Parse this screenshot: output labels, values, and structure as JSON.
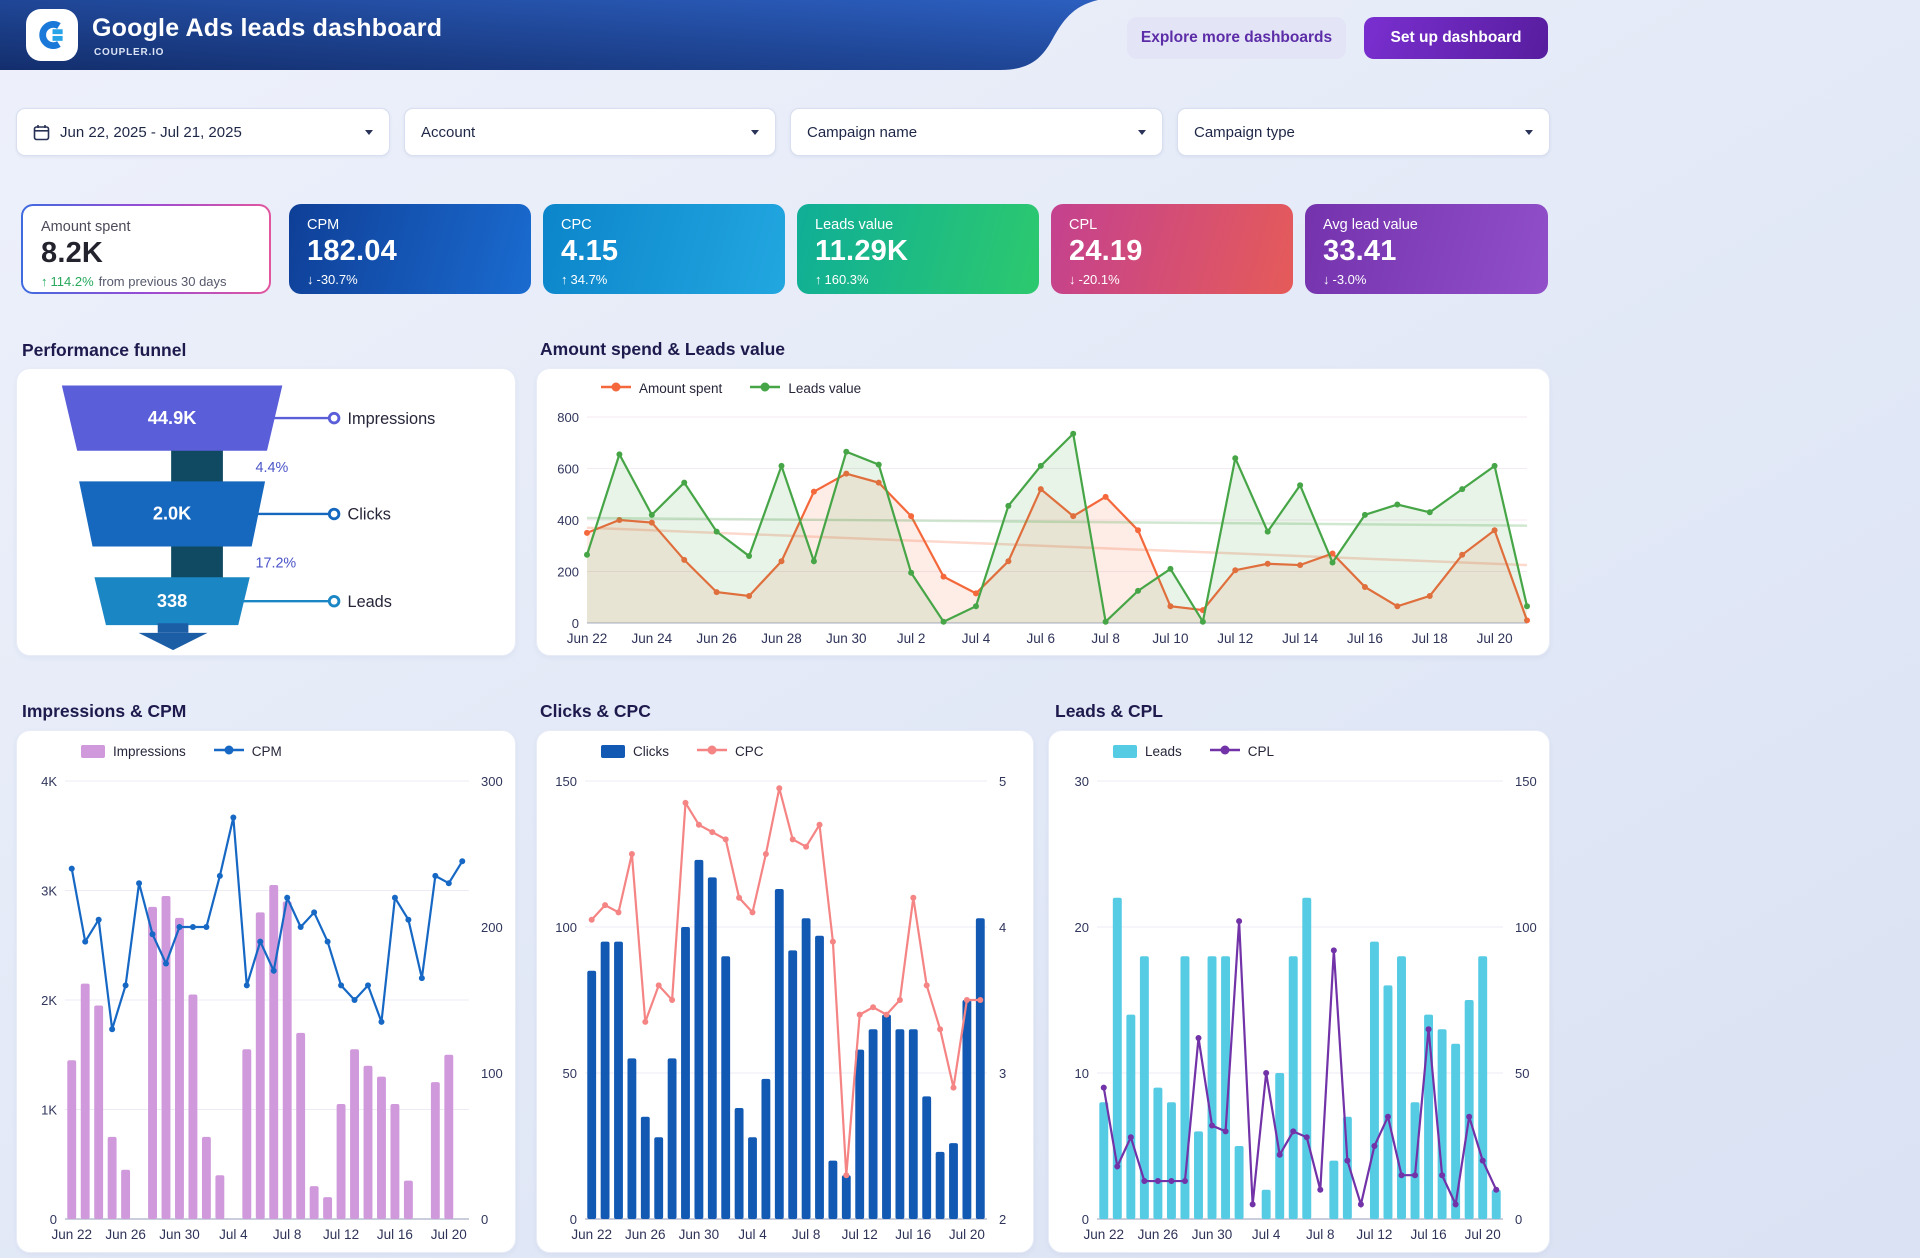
{
  "header": {
    "title": "Google Ads leads dashboard",
    "subtitle": "COUPLER.IO",
    "explore_button": "Explore more dashboards",
    "setup_button": "Set up dashboard"
  },
  "filters": {
    "date_range": "Jun 22, 2025 - Jul 21, 2025",
    "account": "Account",
    "campaign_name": "Campaign name",
    "campaign_type": "Campaign type"
  },
  "kpis": [
    {
      "label": "Amount spent",
      "value": "8.2K",
      "arrow": "↑",
      "delta": "114.2%",
      "delta_suffix": "from previous 30 days",
      "direction": "up"
    },
    {
      "label": "CPM",
      "value": "182.04",
      "arrow": "↓",
      "delta": "-30.7%",
      "direction": "down",
      "gradient": [
        "#0f3f97",
        "#1a6bd0"
      ]
    },
    {
      "label": "CPC",
      "value": "4.15",
      "arrow": "↑",
      "delta": "34.7%",
      "direction": "up",
      "gradient": [
        "#0c85ca",
        "#22a7e0"
      ]
    },
    {
      "label": "Leads value",
      "value": "11.29K",
      "arrow": "↑",
      "delta": "160.3%",
      "direction": "up",
      "gradient": [
        "#0fae97",
        "#2dc96e"
      ]
    },
    {
      "label": "CPL",
      "value": "24.19",
      "arrow": "↓",
      "delta": "-20.1%",
      "direction": "down",
      "gradient": [
        "#c4418f",
        "#e55b59"
      ]
    },
    {
      "label": "Avg lead value",
      "value": "33.41",
      "arrow": "↓",
      "delta": "-3.0%",
      "direction": "down",
      "gradient": [
        "#7433ad",
        "#9150c9"
      ]
    }
  ],
  "chart_data": [
    {
      "id": "funnel",
      "type": "funnel",
      "title": "Performance funnel",
      "stages": [
        {
          "label": "Impressions",
          "value": "44.9K",
          "color": "#5a5ed8"
        },
        {
          "label": "Clicks",
          "value": "2.0K",
          "color": "#1668bf"
        },
        {
          "label": "Leads",
          "value": "338",
          "color": "#1b86c4"
        }
      ],
      "conversions": [
        "4.4%",
        "17.2%"
      ],
      "neck_color": "#0f4a62",
      "arrow_color": "#1c5ea6"
    },
    {
      "id": "spend-leads",
      "type": "line",
      "title": "Amount spend & Leads value",
      "legend_position": "top-left",
      "grid": true,
      "x": [
        "Jun 22",
        "Jun 23",
        "Jun 24",
        "Jun 25",
        "Jun 26",
        "Jun 27",
        "Jun 28",
        "Jun 29",
        "Jun 30",
        "Jul 1",
        "Jul 2",
        "Jul 3",
        "Jul 4",
        "Jul 5",
        "Jul 6",
        "Jul 7",
        "Jul 8",
        "Jul 9",
        "Jul 10",
        "Jul 11",
        "Jul 12",
        "Jul 13",
        "Jul 14",
        "Jul 15",
        "Jul 16",
        "Jul 17",
        "Jul 18",
        "Jul 19",
        "Jul 20",
        "Jul 21"
      ],
      "tick_every": 2,
      "ylim": [
        0,
        800
      ],
      "yticks": [
        0,
        200,
        400,
        600,
        800
      ],
      "series": [
        {
          "name": "Amount spent",
          "color": "#f4683b",
          "values": [
            350,
            400,
            390,
            245,
            120,
            105,
            240,
            510,
            580,
            545,
            415,
            180,
            115,
            240,
            520,
            415,
            490,
            360,
            65,
            50,
            205,
            230,
            225,
            270,
            140,
            65,
            105,
            265,
            360,
            10
          ],
          "trend": [
            370,
            225
          ]
        },
        {
          "name": "Leads value",
          "color": "#46a546",
          "values": [
            265,
            655,
            420,
            545,
            355,
            260,
            610,
            240,
            665,
            615,
            195,
            5,
            65,
            455,
            610,
            735,
            5,
            125,
            210,
            5,
            640,
            355,
            535,
            235,
            420,
            460,
            430,
            520,
            610,
            65
          ],
          "trend": [
            408,
            378
          ]
        }
      ]
    },
    {
      "id": "impressions-cpm",
      "type": "combo",
      "title": "Impressions & CPM",
      "legend_position": "top-left",
      "grid": true,
      "x": [
        "Jun 22",
        "Jun 23",
        "Jun 24",
        "Jun 25",
        "Jun 26",
        "Jun 27",
        "Jun 28",
        "Jun 29",
        "Jun 30",
        "Jul 1",
        "Jul 2",
        "Jul 3",
        "Jul 4",
        "Jul 5",
        "Jul 6",
        "Jul 7",
        "Jul 8",
        "Jul 9",
        "Jul 10",
        "Jul 11",
        "Jul 12",
        "Jul 13",
        "Jul 14",
        "Jul 15",
        "Jul 16",
        "Jul 17",
        "Jul 18",
        "Jul 19",
        "Jul 20",
        "Jul 21"
      ],
      "tick_every": 4,
      "bar": {
        "name": "Impressions",
        "color": "#cf99db",
        "ylim": [
          0,
          4000
        ],
        "yticks": [
          0,
          1000,
          2000,
          3000,
          4000
        ],
        "ytick_labels": [
          "0",
          "1K",
          "2K",
          "3K",
          "4K"
        ],
        "values": [
          1450,
          2150,
          1950,
          750,
          450,
          0,
          2850,
          2950,
          2750,
          2050,
          750,
          400,
          0,
          1550,
          2800,
          3050,
          2900,
          1700,
          300,
          200,
          1050,
          1550,
          1400,
          1300,
          1050,
          350,
          0,
          1250,
          1500,
          0
        ]
      },
      "line": {
        "name": "CPM",
        "color": "#1668c4",
        "ylim": [
          0,
          300
        ],
        "yticks": [
          0,
          100,
          200,
          300
        ],
        "values": [
          240,
          190,
          205,
          130,
          160,
          230,
          195,
          175,
          200,
          200,
          200,
          235,
          275,
          160,
          190,
          170,
          220,
          200,
          210,
          190,
          160,
          150,
          160,
          135,
          220,
          205,
          165,
          235,
          230,
          245
        ]
      }
    },
    {
      "id": "clicks-cpc",
      "type": "combo",
      "title": "Clicks & CPC",
      "legend_position": "top-left",
      "grid": true,
      "x": [
        "Jun 22",
        "Jun 23",
        "Jun 24",
        "Jun 25",
        "Jun 26",
        "Jun 27",
        "Jun 28",
        "Jun 29",
        "Jun 30",
        "Jul 1",
        "Jul 2",
        "Jul 3",
        "Jul 4",
        "Jul 5",
        "Jul 6",
        "Jul 7",
        "Jul 8",
        "Jul 9",
        "Jul 10",
        "Jul 11",
        "Jul 12",
        "Jul 13",
        "Jul 14",
        "Jul 15",
        "Jul 16",
        "Jul 17",
        "Jul 18",
        "Jul 19",
        "Jul 20",
        "Jul 21"
      ],
      "tick_every": 4,
      "bar": {
        "name": "Clicks",
        "color": "#1159b3",
        "ylim": [
          0,
          150
        ],
        "yticks": [
          0,
          50,
          100,
          150
        ],
        "ytick_labels": [
          "0",
          "50",
          "100",
          "150"
        ],
        "values": [
          85,
          95,
          95,
          55,
          35,
          28,
          55,
          100,
          123,
          117,
          90,
          38,
          28,
          48,
          113,
          92,
          103,
          97,
          20,
          15,
          58,
          65,
          70,
          65,
          65,
          42,
          23,
          26,
          75,
          103
        ]
      },
      "line": {
        "name": "CPC",
        "color": "#f58484",
        "ylim": [
          2,
          5
        ],
        "yticks": [
          2,
          3,
          4,
          5
        ],
        "values": [
          4.05,
          4.15,
          4.1,
          4.5,
          3.35,
          3.6,
          3.5,
          4.85,
          4.7,
          4.65,
          4.6,
          4.2,
          4.1,
          4.5,
          4.95,
          4.6,
          4.55,
          4.7,
          3.9,
          2.3,
          3.4,
          3.45,
          3.4,
          3.5,
          4.2,
          3.6,
          3.3,
          2.9,
          3.5,
          3.5
        ]
      }
    },
    {
      "id": "leads-cpl",
      "type": "combo",
      "title": "Leads & CPL",
      "legend_position": "top-left",
      "grid": true,
      "x": [
        "Jun 22",
        "Jun 23",
        "Jun 24",
        "Jun 25",
        "Jun 26",
        "Jun 27",
        "Jun 28",
        "Jun 29",
        "Jun 30",
        "Jul 1",
        "Jul 2",
        "Jul 3",
        "Jul 4",
        "Jul 5",
        "Jul 6",
        "Jul 7",
        "Jul 8",
        "Jul 9",
        "Jul 10",
        "Jul 11",
        "Jul 12",
        "Jul 13",
        "Jul 14",
        "Jul 15",
        "Jul 16",
        "Jul 17",
        "Jul 18",
        "Jul 19",
        "Jul 20",
        "Jul 21"
      ],
      "tick_every": 4,
      "bar": {
        "name": "Leads",
        "color": "#55cbe4",
        "ylim": [
          0,
          30
        ],
        "yticks": [
          0,
          10,
          20,
          30
        ],
        "ytick_labels": [
          "0",
          "10",
          "20",
          "30"
        ],
        "values": [
          8,
          22,
          14,
          18,
          9,
          8,
          18,
          6,
          18,
          18,
          5,
          0,
          2,
          10,
          18,
          22,
          0,
          4,
          7,
          0,
          19,
          16,
          18,
          8,
          14,
          13,
          12,
          15,
          18,
          2
        ]
      },
      "line": {
        "name": "CPL",
        "color": "#7232a8",
        "ylim": [
          0,
          150
        ],
        "yticks": [
          0,
          50,
          100,
          150
        ],
        "values": [
          45,
          18,
          28,
          13,
          13,
          13,
          13,
          62,
          32,
          30,
          102,
          5,
          50,
          22,
          30,
          28,
          10,
          92,
          20,
          5,
          25,
          35,
          15,
          15,
          65,
          15,
          5,
          35,
          20,
          10
        ]
      }
    }
  ]
}
